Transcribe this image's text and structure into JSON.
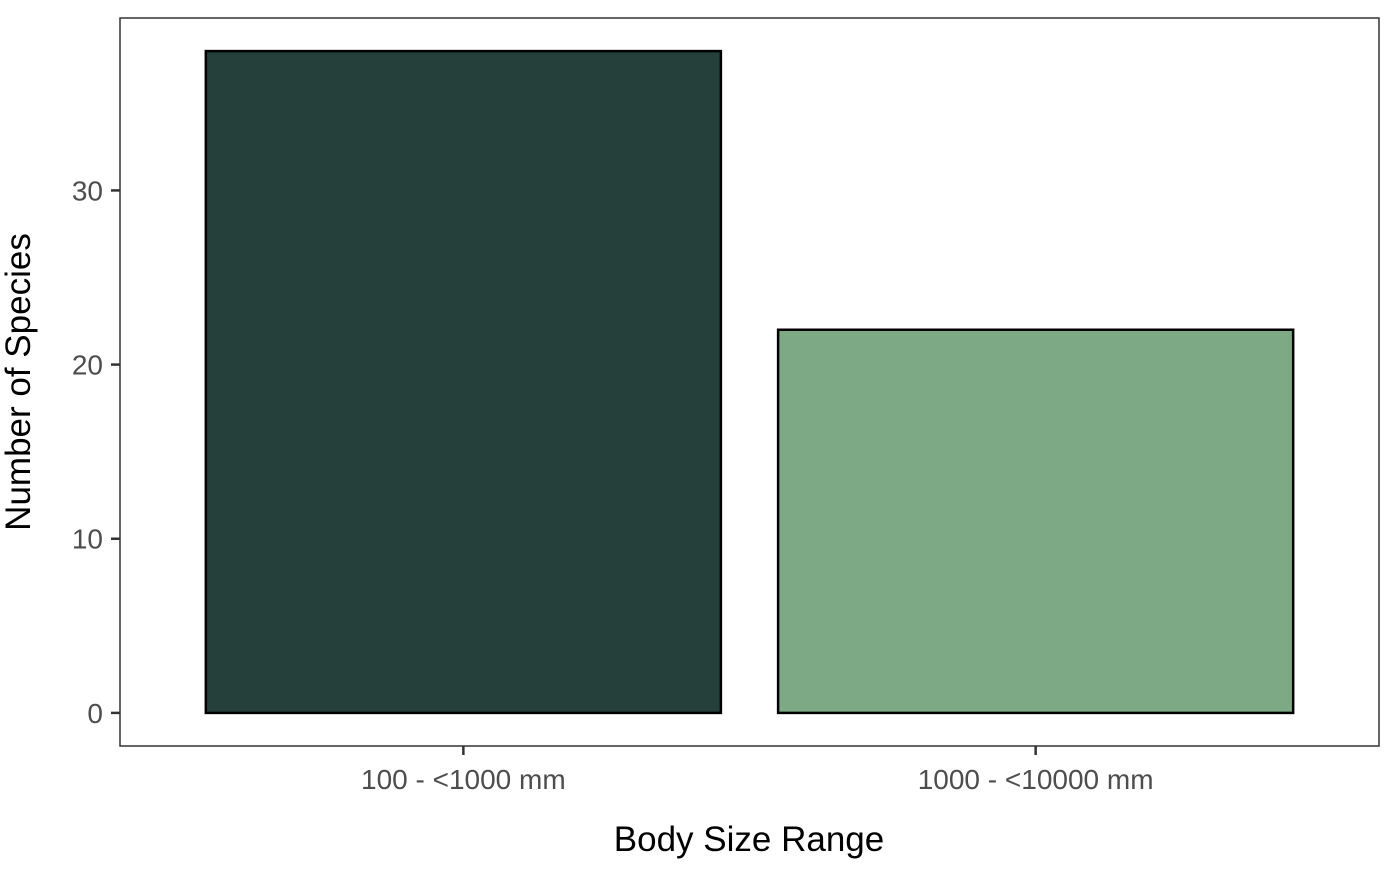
{
  "chart_data": {
    "type": "bar",
    "title": "",
    "xlabel": "Body Size Range",
    "ylabel": "Number of Species",
    "categories": [
      "100 - <1000 mm",
      "1000 - <10000 mm"
    ],
    "values": [
      38,
      22
    ],
    "colors": [
      "#253F3A",
      "#7DAA84"
    ],
    "yticks": [
      0,
      10,
      20,
      30
    ],
    "ylim": [
      -1.9,
      39.9
    ],
    "grid": false,
    "legend": "none"
  }
}
